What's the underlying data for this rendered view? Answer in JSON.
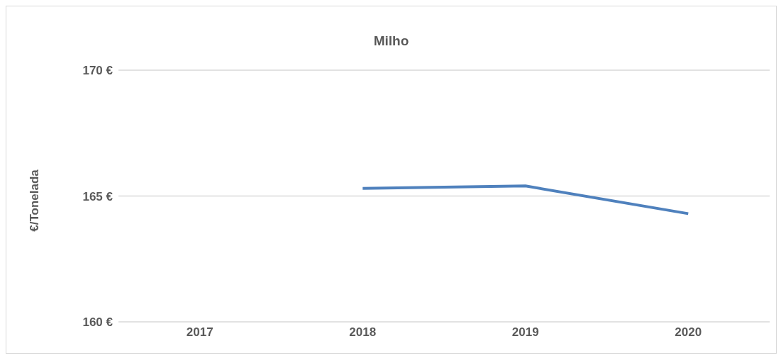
{
  "chart_data": {
    "type": "line",
    "title": "Milho",
    "ylabel": "€/Tonelada",
    "categories": [
      "2017",
      "2018",
      "2019",
      "2020"
    ],
    "series": [
      {
        "color": "#4f81bd",
        "values": [
          null,
          165.3,
          165.4,
          164.3
        ]
      }
    ],
    "ylim": [
      160,
      170
    ],
    "yticks": [
      {
        "value": 160,
        "label": "160 €"
      },
      {
        "value": 165,
        "label": "165 €"
      },
      {
        "value": 170,
        "label": "170 €"
      }
    ],
    "grid": "y",
    "legend": false,
    "marker": "none",
    "line_style": "solid"
  }
}
